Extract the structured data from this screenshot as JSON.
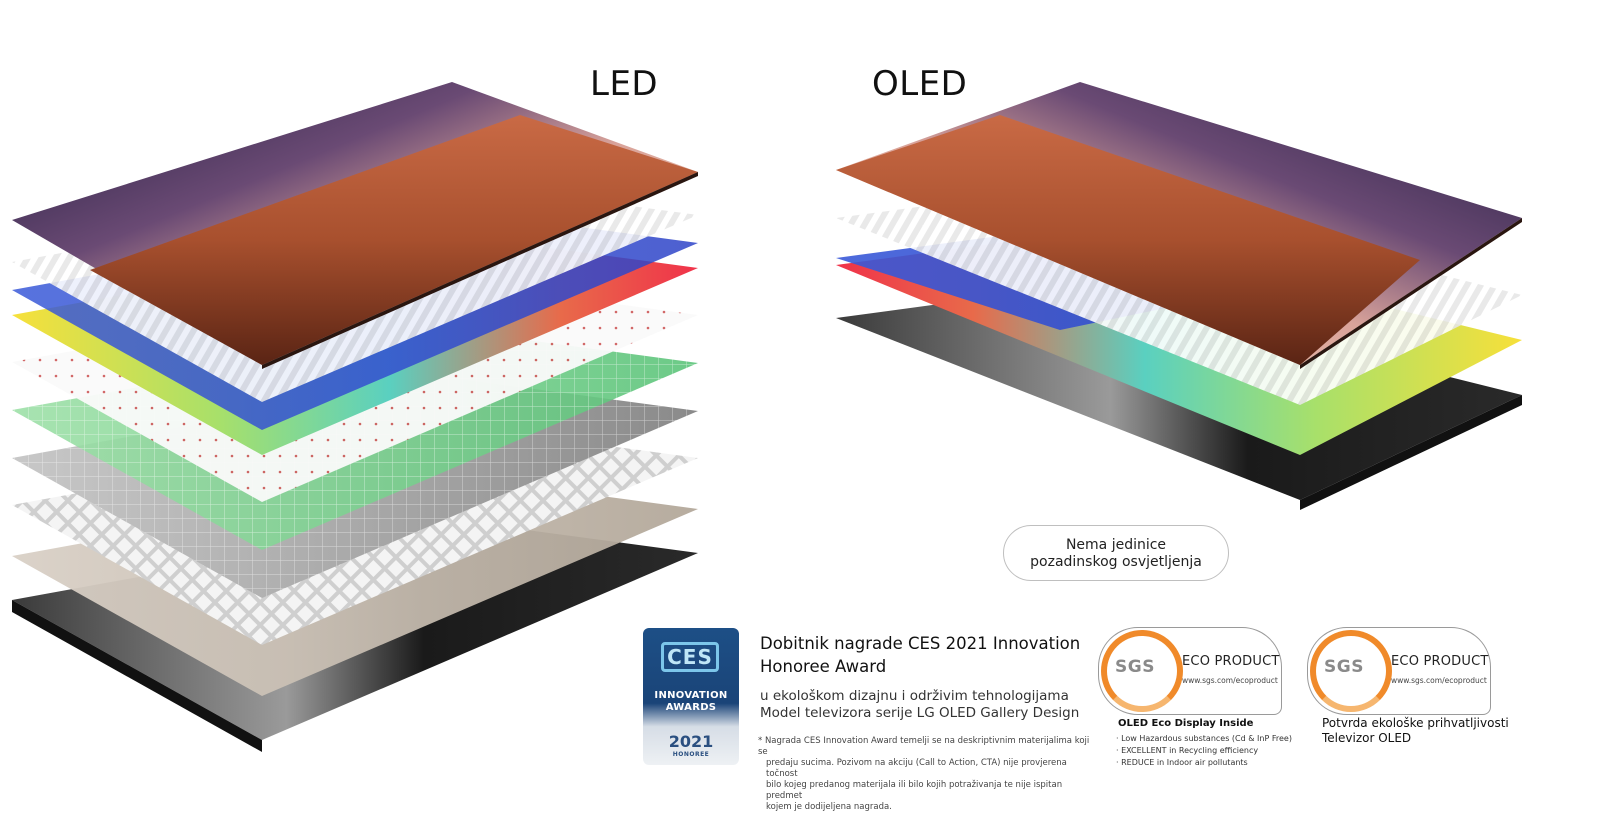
{
  "titles": {
    "led": "LED",
    "oled": "OLED"
  },
  "oled_note": {
    "line1": "Nema jedinice",
    "line2": "pozadinskog osvjetljenja"
  },
  "ces_badge": {
    "logo": "CES",
    "line1": "INNOVATION",
    "line2": "AWARDS",
    "year": "2021",
    "honoree": "HONOREE"
  },
  "award": {
    "title_line1": "Dobitnik nagrade CES 2021 Innovation",
    "title_line2": "Honoree Award",
    "sub_line1": "u ekološkom dizajnu i održivim tehnologijama",
    "sub_line2": "Model televizora serije LG OLED Gallery Design",
    "note_line1": "* Nagrada CES Innovation Award temelji se na deskriptivnim materijalima koji se",
    "note_line2": "predaju sucima. Pozivom na akciju (Call to Action, CTA) nije provjerena točnost",
    "note_line3": "bilo kojeg predanog materijala ili bilo kojih potraživanja te nije ispitan predmet",
    "note_line4": "kojem je dodijeljena nagrada."
  },
  "sgs_badges": [
    {
      "logo": "SGS",
      "label": "ECO PRODUCT",
      "url": "www.sgs.com/ecoproduct",
      "caption": "OLED Eco Display Inside",
      "items": [
        "· Low Hazardous substances (Cd & InP Free)",
        "· EXCELLENT in Recycling efficiency",
        "· REDUCE in Indoor air pollutants"
      ]
    },
    {
      "logo": "SGS",
      "label": "ECO PRODUCT",
      "url": "www.sgs.com/ecoproduct",
      "caption_line1": "Potvrda ekološke prihvatljivosti",
      "caption_line2": "Televizor OLED"
    }
  ],
  "colors": {
    "ces_blue": "#1a4478",
    "sgs_orange": "#f08a2a"
  }
}
